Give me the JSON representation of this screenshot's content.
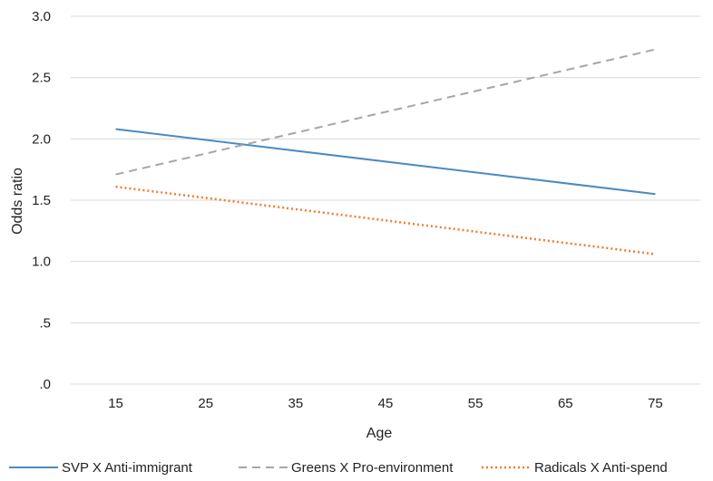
{
  "chart_data": {
    "type": "line",
    "xlabel": "Age",
    "ylabel": "Odds ratio",
    "x": [
      15,
      75
    ],
    "x_ticks": [
      15,
      25,
      35,
      45,
      55,
      65,
      75
    ],
    "y_ticks": [
      0,
      0.5,
      1.0,
      1.5,
      2.0,
      2.5,
      3.0
    ],
    "y_tick_labels": [
      ".0",
      ".5",
      "1.0",
      "1.5",
      "2.0",
      "2.5",
      "3.0"
    ],
    "ylim": [
      0,
      3.0
    ],
    "grid": true,
    "legend_position": "bottom",
    "series": [
      {
        "name": "SVP X Anti-immigrant",
        "values": [
          2.08,
          1.55
        ],
        "color": "#4a8bc2",
        "dash": "solid"
      },
      {
        "name": "Greens X Pro-environment",
        "values": [
          1.71,
          2.73
        ],
        "color": "#a6a6a6",
        "dash": "dashed"
      },
      {
        "name": "Radicals X Anti-spend",
        "values": [
          1.61,
          1.06
        ],
        "color": "#ed7d31",
        "dash": "dotted"
      }
    ]
  }
}
